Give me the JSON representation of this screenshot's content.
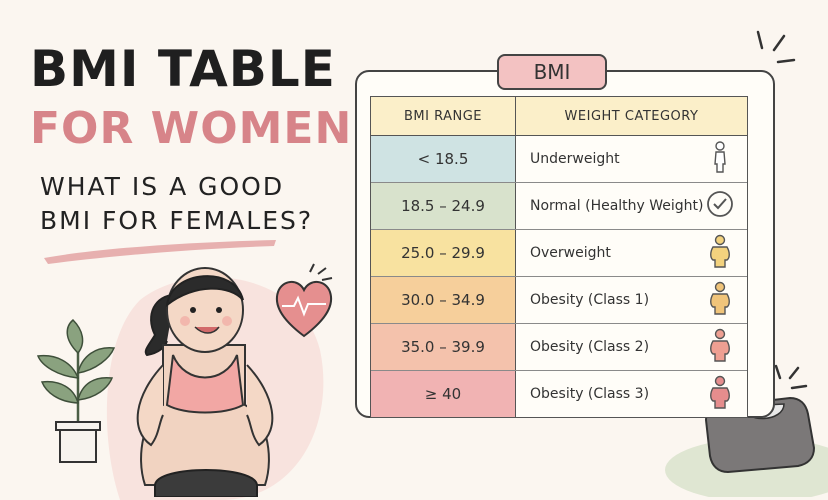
{
  "header": {
    "title_line1": "BMI TABLE",
    "title_line2": "FOR WOMEN:",
    "subtitle_line1": "WHAT IS A GOOD",
    "subtitle_line2": "BMI FOR FEMALES?"
  },
  "table": {
    "badge": "BMI",
    "headers": {
      "range": "BMI RANGE",
      "category": "WEIGHT CATEGORY"
    },
    "rows": [
      {
        "range": "< 18.5",
        "category": "Underweight",
        "color": "#cfe3e3",
        "icon": "slim-figure-icon",
        "icon_color": "#ffffff"
      },
      {
        "range": "18.5 – 24.9",
        "category": "Normal (Healthy Weight)",
        "color": "#d8e2cc",
        "icon": "checkmark-circle-icon",
        "icon_color": "#ffffff"
      },
      {
        "range": "25.0 – 29.9",
        "category": "Overweight",
        "color": "#f8e2a0",
        "icon": "figure-icon",
        "icon_color": "#f3d27e"
      },
      {
        "range": "30.0 – 34.9",
        "category": "Obesity (Class 1)",
        "color": "#f6cf9b",
        "icon": "figure-icon",
        "icon_color": "#f0c47a"
      },
      {
        "range": "35.0 – 39.9",
        "category": "Obesity (Class 2)",
        "color": "#f4c2ac",
        "icon": "figure-icon",
        "icon_color": "#ee9f92"
      },
      {
        "range": "≥ 40",
        "category": "Obesity (Class 3)",
        "color": "#f1b3b3",
        "icon": "figure-icon",
        "icon_color": "#e58d8d"
      }
    ]
  },
  "colors": {
    "background": "#fbf6f0",
    "title_dark": "#1f1f1f",
    "title_pink": "#d78489",
    "badge_fill": "#f3c2c2",
    "header_fill": "#fbefc9"
  },
  "illustrations": [
    "woman-illustration",
    "plant-icon",
    "heart-pulse-icon",
    "bathroom-scale-icon",
    "brush-stroke"
  ]
}
